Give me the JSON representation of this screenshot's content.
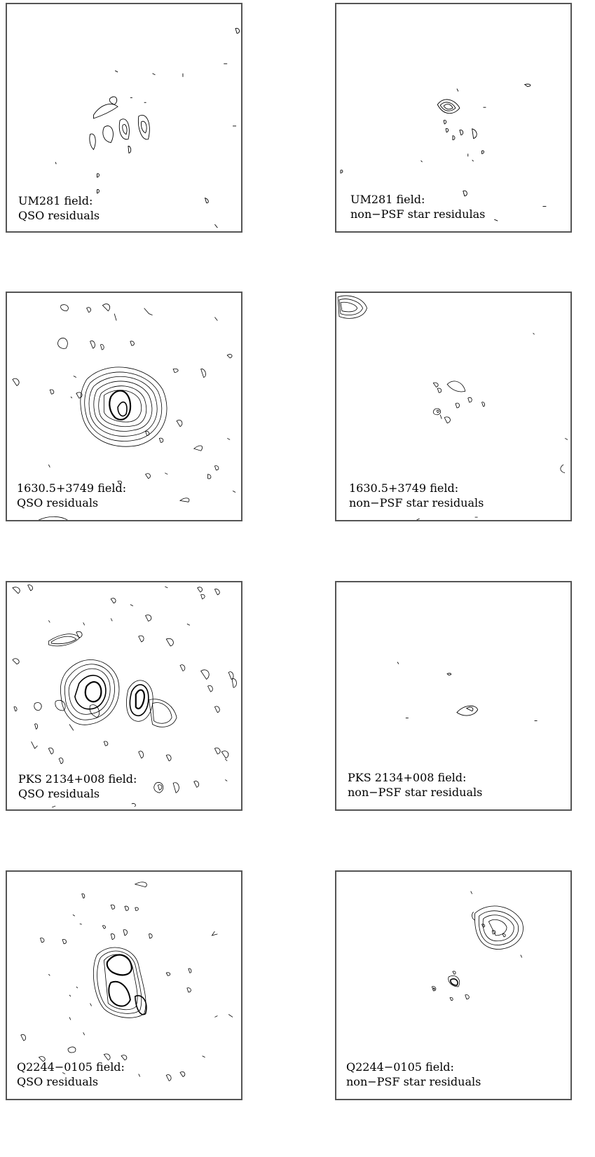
{
  "panels": [
    {
      "line1": "UM281 field:",
      "line2": "QSO residuals"
    },
    {
      "line1": "UM281 field:",
      "line2": "non−PSF star residulas"
    },
    {
      "line1": "1630.5+3749 field:",
      "line2": "QSO residuals"
    },
    {
      "line1": "1630.5+3749 field:",
      "line2": "non−PSF star residuals"
    },
    {
      "line1": "PKS 2134+008  field:",
      "line2": "QSO residuals"
    },
    {
      "line1": "PKS 2134+008 field:",
      "line2": "non−PSF star residuals"
    },
    {
      "line1": "Q2244−0105 field:",
      "line2": "QSO residuals"
    },
    {
      "line1": "Q2244−0105 field:",
      "line2": "non−PSF star residuals"
    }
  ]
}
